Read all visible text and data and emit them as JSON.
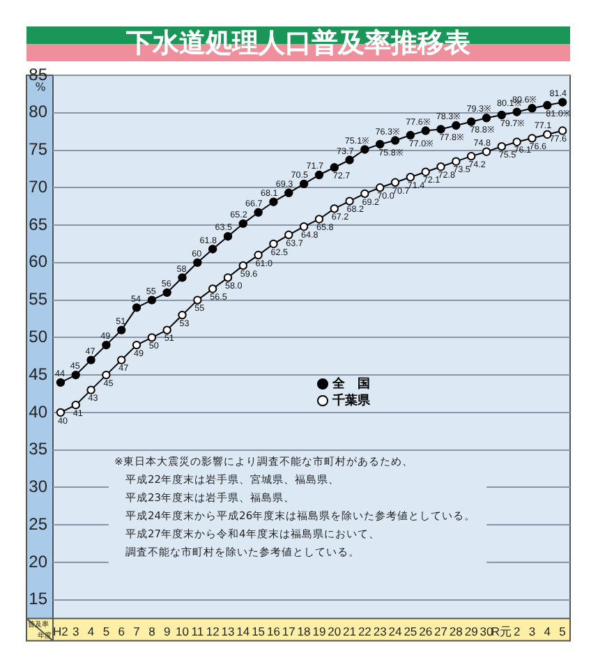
{
  "chart_data": {
    "type": "line",
    "title": "下水道処理人口普及率推移表",
    "xlabel": "年度",
    "ylabel": "%",
    "categories": [
      "H2",
      "3",
      "4",
      "5",
      "6",
      "7",
      "8",
      "9",
      "10",
      "11",
      "12",
      "13",
      "14",
      "15",
      "16",
      "17",
      "18",
      "19",
      "20",
      "21",
      "22",
      "23",
      "24",
      "25",
      "26",
      "27",
      "28",
      "29",
      "30",
      "R元",
      "2",
      "3",
      "4",
      "5"
    ],
    "series": [
      {
        "name": "全　国",
        "color": "#000000",
        "values": [
          44,
          45,
          47,
          49,
          51,
          54,
          55,
          56,
          58,
          60,
          61.8,
          63.5,
          65.2,
          66.7,
          68.1,
          69.3,
          70.5,
          71.7,
          72.7,
          73.7,
          75.1,
          75.8,
          76.3,
          77.0,
          77.6,
          77.8,
          78.3,
          78.8,
          79.3,
          79.7,
          80.1,
          80.6,
          81.0,
          81.4
        ],
        "value_labels": [
          "44",
          "45",
          "47",
          "49",
          "51",
          "54",
          "55",
          "56",
          "58",
          "60",
          "61.8",
          "63.5",
          "65.2",
          "66.7",
          "68.1",
          "69.3",
          "70.5",
          "71.7",
          "72.7",
          "73.7",
          "75.1※",
          "75.8※",
          "76.3※",
          "77.0※",
          "77.6※",
          "77.8※",
          "78.3※",
          "78.8※",
          "79.3※",
          "79.7※",
          "80.1※",
          "80.6※",
          "81.0※",
          "81.4"
        ]
      },
      {
        "name": "千葉県",
        "color": "#000000",
        "values": [
          40,
          41,
          43,
          45,
          47,
          49,
          50,
          51,
          53,
          55,
          56.5,
          58.0,
          59.6,
          61.0,
          62.5,
          63.7,
          64.8,
          65.8,
          67.2,
          68.2,
          69.2,
          70.0,
          70.7,
          71.4,
          72.1,
          72.8,
          73.5,
          74.2,
          74.8,
          75.5,
          76.1,
          76.6,
          77.1,
          77.6
        ],
        "value_labels": [
          "40",
          "41",
          "43",
          "45",
          "47",
          "49",
          "50",
          "51",
          "53",
          "55",
          "56.5",
          "58.0",
          "59.6",
          "61.0",
          "62.5",
          "63.7",
          "64.8",
          "65.8",
          "67.2",
          "68.2",
          "69.2",
          "70.0",
          "70.7",
          "71.4",
          "72.1",
          "72.8",
          "73.5",
          "74.2",
          "74.8",
          "75.5",
          "76.1",
          "76.6",
          "77.1",
          "77.6"
        ]
      }
    ],
    "ylim": [
      12.5,
      85
    ],
    "yticks": [
      15,
      20,
      25,
      30,
      35,
      40,
      45,
      50,
      55,
      60,
      65,
      70,
      75,
      80,
      85
    ],
    "grid": "y",
    "legend": "center",
    "marker": "circle",
    "line_style": "solid",
    "annotations": [
      "普及率",
      "※東日本大震災の影響により調査不能な市町村があるため、",
      "平成22年度末は岩手県、宮城県、福島県、",
      "平成23年度末は岩手県、福島県、",
      "平成24年度末から平成26年度末は福島県を除いた参考値としている。",
      "平成27年度末から令和4年度末は福島県において、",
      "調査不能な市町村を除いた参考値としている。"
    ]
  }
}
